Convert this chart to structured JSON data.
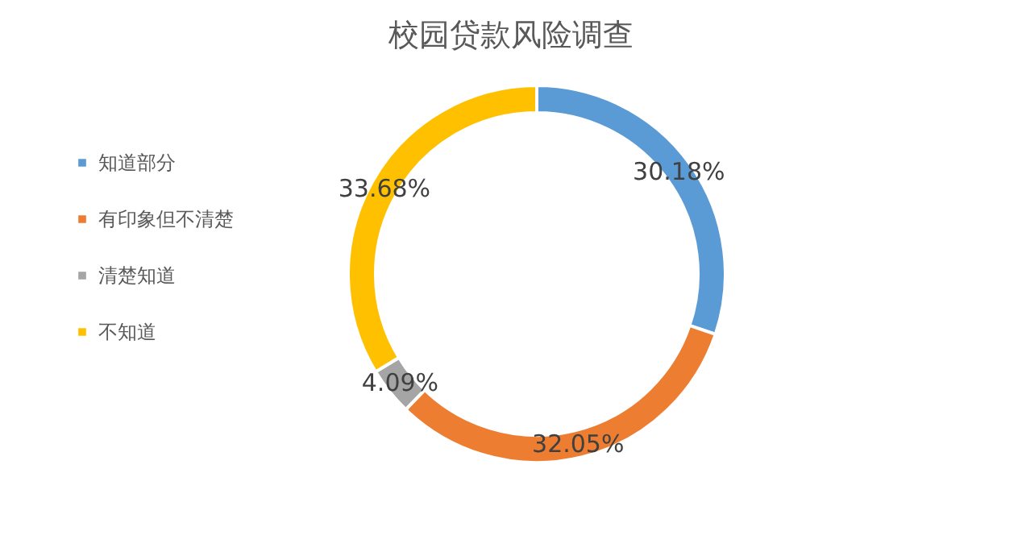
{
  "chart_data": {
    "type": "donut",
    "title": "校园贷款风险调查",
    "categories": [
      "知道部分",
      "有印象但不清楚",
      "清楚知道",
      "不知道"
    ],
    "values": [
      30.18,
      32.05,
      4.09,
      33.68
    ],
    "value_labels": [
      "30.18%",
      "32.05%",
      "4.09%",
      "33.68%"
    ],
    "colors": [
      "#5b9bd5",
      "#ed7d31",
      "#a5a5a5",
      "#ffc000"
    ],
    "legend": "left"
  }
}
